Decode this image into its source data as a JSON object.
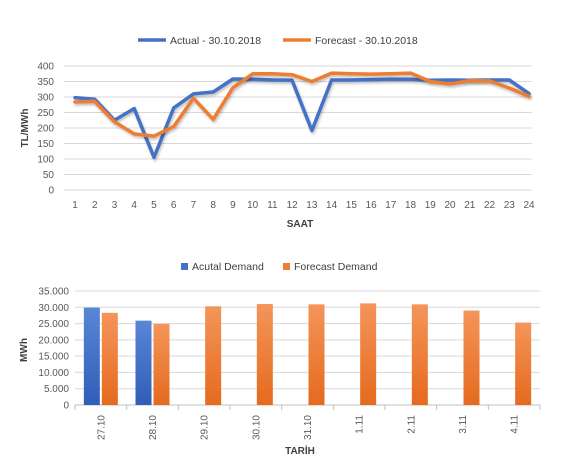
{
  "chart_data": [
    {
      "type": "line",
      "title": "",
      "xlabel": "SAAT",
      "ylabel": "TL/MWh",
      "ylim": [
        0,
        400
      ],
      "yticks": [
        "0",
        "50",
        "100",
        "150",
        "200",
        "250",
        "300",
        "350",
        "400"
      ],
      "categories": [
        "1",
        "2",
        "3",
        "4",
        "5",
        "6",
        "7",
        "8",
        "9",
        "10",
        "11",
        "12",
        "13",
        "14",
        "15",
        "16",
        "17",
        "18",
        "19",
        "20",
        "21",
        "22",
        "23",
        "24"
      ],
      "grid": true,
      "legend_position": "top",
      "series": [
        {
          "name": "Actual - 30.10.2018",
          "color": "#4472C4",
          "values": [
            298,
            293,
            225,
            263,
            105,
            265,
            310,
            316,
            358,
            357,
            355,
            354,
            192,
            355,
            355,
            356,
            357,
            357,
            354,
            355,
            354,
            355,
            355,
            311
          ]
        },
        {
          "name": "Forecast - 30.10.2018",
          "color": "#ED7D31",
          "values": [
            284,
            286,
            220,
            181,
            174,
            205,
            296,
            228,
            330,
            375,
            375,
            372,
            350,
            377,
            375,
            374,
            375,
            377,
            350,
            342,
            353,
            352,
            329,
            302
          ]
        }
      ]
    },
    {
      "type": "bar",
      "title": "",
      "xlabel": "TARİH",
      "ylabel": "MWh",
      "ylim": [
        0,
        35000
      ],
      "yticks": [
        "0",
        "5.000",
        "10.000",
        "15.000",
        "20.000",
        "25.000",
        "30.000",
        "35.000"
      ],
      "categories": [
        "27.10",
        "28.10",
        "29.10",
        "30.10",
        "31.10",
        "1.11",
        "2.11",
        "3.11",
        "4.11"
      ],
      "grid": true,
      "legend_position": "top",
      "series": [
        {
          "name": "Acutal Demand",
          "color": "#4472C4",
          "values": [
            29900,
            25900,
            null,
            null,
            null,
            null,
            null,
            null,
            null
          ]
        },
        {
          "name": "Forecast Demand",
          "color": "#ED7D31",
          "values": [
            28300,
            24900,
            30300,
            31000,
            30900,
            31200,
            30900,
            29000,
            25300
          ]
        }
      ]
    }
  ]
}
